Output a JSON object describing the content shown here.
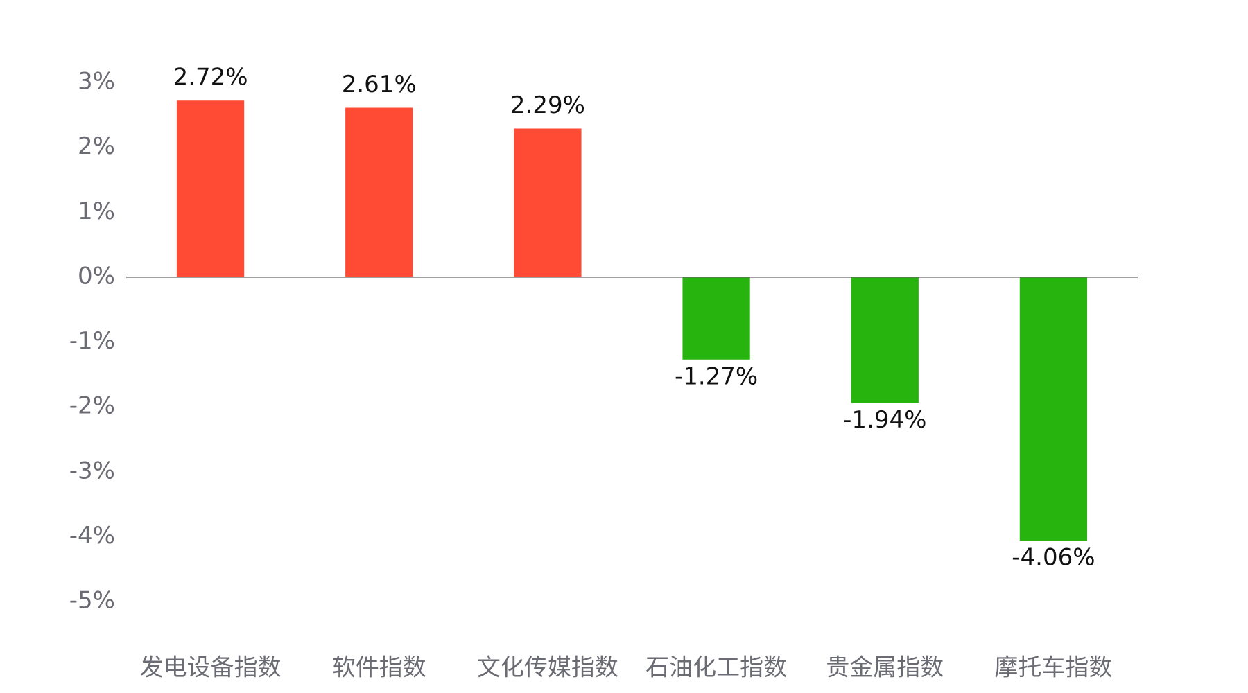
{
  "chart_data": {
    "type": "bar",
    "categories": [
      "发电设备指数",
      "软件指数",
      "文化传媒指数",
      "石油化工指数",
      "贵金属指数",
      "摩托车指数"
    ],
    "values": [
      2.72,
      2.61,
      2.29,
      -1.27,
      -1.94,
      -4.06
    ],
    "value_labels": [
      "2.72%",
      "2.61%",
      "2.29%",
      "-1.27%",
      "-1.94%",
      "-4.06%"
    ],
    "colors": [
      "#ff4b33",
      "#ff4b33",
      "#ff4b33",
      "#28b40e",
      "#28b40e",
      "#28b40e"
    ],
    "ylim": [
      -5,
      3
    ],
    "yticks": [
      {
        "value": 3,
        "label": "3%"
      },
      {
        "value": 2,
        "label": "2%"
      },
      {
        "value": 1,
        "label": "1%"
      },
      {
        "value": 0,
        "label": "0%"
      },
      {
        "value": -1,
        "label": "-1%"
      },
      {
        "value": -2,
        "label": "-2%"
      },
      {
        "value": -3,
        "label": "-3%"
      },
      {
        "value": -4,
        "label": "-4%"
      },
      {
        "value": -5,
        "label": "-5%"
      }
    ],
    "grid": false
  }
}
